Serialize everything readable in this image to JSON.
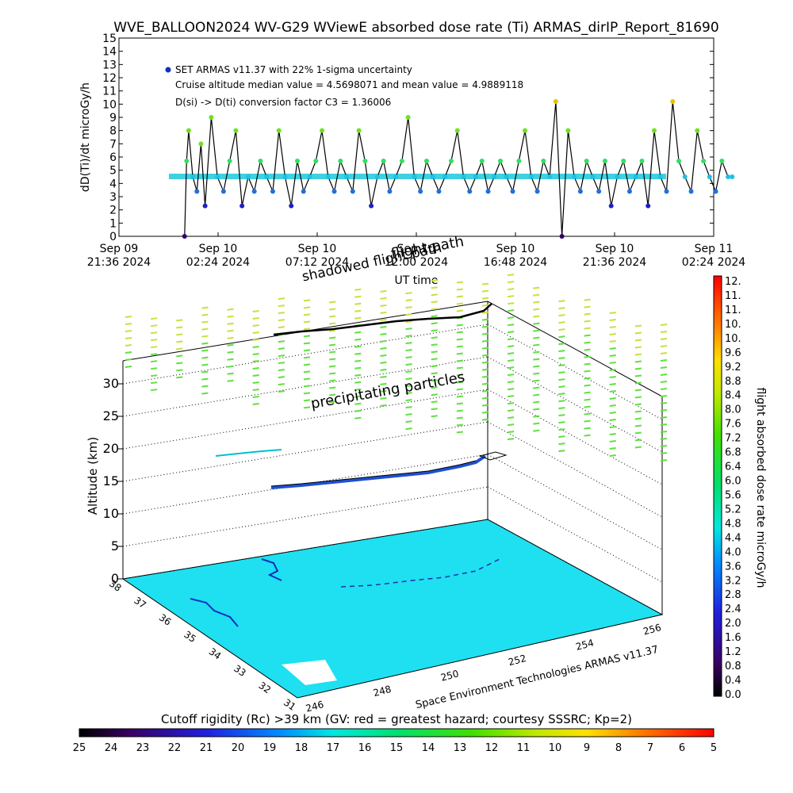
{
  "title": "WVE_BALLOON2024 WV-G29 WViewE absorbed dose rate (Ti) ARMAS_dirIP_Report_81690",
  "chart_data": [
    {
      "type": "line",
      "title": "WVE_BALLOON2024 WV-G29 WViewE absorbed dose rate (Ti) ARMAS_dirIP_Report_81690",
      "xlabel": "UT time",
      "ylabel": "dD(Ti)/dt microGy/h",
      "ylim": [
        0,
        15
      ],
      "yticks": [
        "0",
        "1",
        "2",
        "3",
        "4",
        "5",
        "6",
        "7",
        "8",
        "9",
        "10",
        "11",
        "12",
        "13",
        "14",
        "15"
      ],
      "xticks": [
        {
          "l1": "Sep 09",
          "l2": "21:36 2024"
        },
        {
          "l1": "Sep 10",
          "l2": "02:24 2024"
        },
        {
          "l1": "Sep 10",
          "l2": "07:12 2024"
        },
        {
          "l1": "Sep 10",
          "l2": "12:00 2024"
        },
        {
          "l1": "Sep 10",
          "l2": "16:48 2024"
        },
        {
          "l1": "Sep 10",
          "l2": "21:36 2024"
        },
        {
          "l1": "Sep 11",
          "l2": "02:24 2024"
        }
      ],
      "annotations": [
        "SET ARMAS v11.37 with 22% 1-sigma uncertainty",
        "Cruise altitude median value = 4.5698071 and mean value = 4.9889118",
        "D(si) -> D(ti) conversion factor C3 = 1.36006"
      ],
      "overlay_labels": [
        "flight path",
        "shadowed flight path"
      ],
      "median": 4.5698071,
      "mean": 4.9889118,
      "conversion_factor": 1.36006,
      "uncertainty_pct": 22,
      "x_hours_from_first_tick": [
        3.2,
        3.3,
        3.4,
        3.6,
        3.8,
        4.0,
        4.2,
        4.5,
        4.8,
        5.1,
        5.4,
        5.7,
        6.0,
        6.3,
        6.6,
        6.9,
        7.2,
        7.5,
        7.8,
        8.1,
        8.4,
        8.7,
        9.0,
        9.3,
        9.6,
        9.9,
        10.2,
        10.5,
        10.8,
        11.1,
        11.4,
        11.7,
        12.0,
        12.3,
        12.6,
        12.9,
        13.2,
        13.5,
        13.8,
        14.1,
        14.4,
        14.7,
        15.0,
        15.3,
        15.6,
        15.9,
        16.2,
        16.5,
        16.8,
        17.1,
        17.4,
        17.7,
        18.0,
        18.3,
        18.6,
        18.9,
        19.2,
        19.5,
        19.8,
        20.1,
        20.4,
        20.7,
        21.0,
        21.3,
        21.6,
        21.9,
        22.2,
        22.5,
        22.8,
        23.1,
        23.4,
        23.7,
        24.0,
        24.3,
        24.6,
        24.9,
        25.2,
        25.5,
        25.8,
        26.1,
        26.4,
        26.7,
        27.0,
        27.3,
        27.6,
        27.9,
        28.2,
        28.5,
        28.8,
        29.1,
        29.4,
        29.7,
        29.9
      ],
      "values": [
        0,
        5.7,
        8,
        4.5,
        3.4,
        7,
        2.3,
        9,
        4.5,
        3.4,
        5.7,
        8,
        2.3,
        4.5,
        3.4,
        5.7,
        4.5,
        3.4,
        8,
        4.5,
        2.3,
        5.7,
        3.4,
        4.5,
        5.7,
        8,
        4.5,
        3.4,
        5.7,
        4.5,
        3.4,
        8,
        5.7,
        2.3,
        4.5,
        5.7,
        3.4,
        4.5,
        5.7,
        9,
        4.5,
        3.4,
        5.7,
        4.5,
        3.4,
        4.5,
        5.7,
        8,
        4.5,
        3.4,
        4.5,
        5.7,
        3.4,
        4.5,
        5.7,
        4.5,
        3.4,
        5.7,
        8,
        4.5,
        3.4,
        5.7,
        4.5,
        10.2,
        0,
        8,
        4.5,
        3.4,
        5.7,
        4.5,
        3.4,
        5.7,
        2.3,
        4.5,
        5.7,
        3.4,
        4.5,
        5.7,
        2.3,
        8,
        4.5,
        3.4,
        10.2,
        5.7,
        4.5,
        3.4,
        8,
        5.7,
        4.5,
        3.4,
        5.7,
        4.5,
        4.5
      ],
      "series_markers": [
        "SET ARMAS v11.37"
      ]
    },
    {
      "type": "scatter",
      "title": "",
      "ylabel": "Altitude (km)",
      "zticks": [
        "0",
        "5",
        "10",
        "15",
        "20",
        "25",
        "30"
      ],
      "lat_ticks": [
        "38",
        "37",
        "36",
        "35",
        "34",
        "33",
        "32",
        "31"
      ],
      "lon_ticks": [
        "246",
        "248",
        "250",
        "252",
        "254",
        "256"
      ],
      "annotation": "precipitating particles",
      "credit": "Space Environment Technologies ARMAS v11.37",
      "colorbar_label": "flight absorbed dose rate microGy/h",
      "colorbar_ticks": [
        "12.",
        "11.",
        "11.",
        "10.",
        "10.",
        "9.6",
        "9.2",
        "8.8",
        "8.4",
        "8.0",
        "7.6",
        "7.2",
        "6.8",
        "6.4",
        "6.0",
        "5.6",
        "5.2",
        "4.8",
        "4.4",
        "4.0",
        "3.6",
        "3.2",
        "2.8",
        "2.4",
        "2.0",
        "1.6",
        "1.2",
        "0.8",
        "0.4",
        "0.0"
      ]
    },
    {
      "type": "heatmap",
      "xlabel": "Cutoff rigidity (Rc) >39 km (GV: red = greatest hazard; courtesy SSSRC; Kp=2)",
      "ticks": [
        "25",
        "24",
        "23",
        "22",
        "21",
        "20",
        "19",
        "18",
        "17",
        "16",
        "15",
        "14",
        "13",
        "12",
        "11",
        "10",
        "9",
        "8",
        "7",
        "6",
        "5"
      ]
    }
  ]
}
